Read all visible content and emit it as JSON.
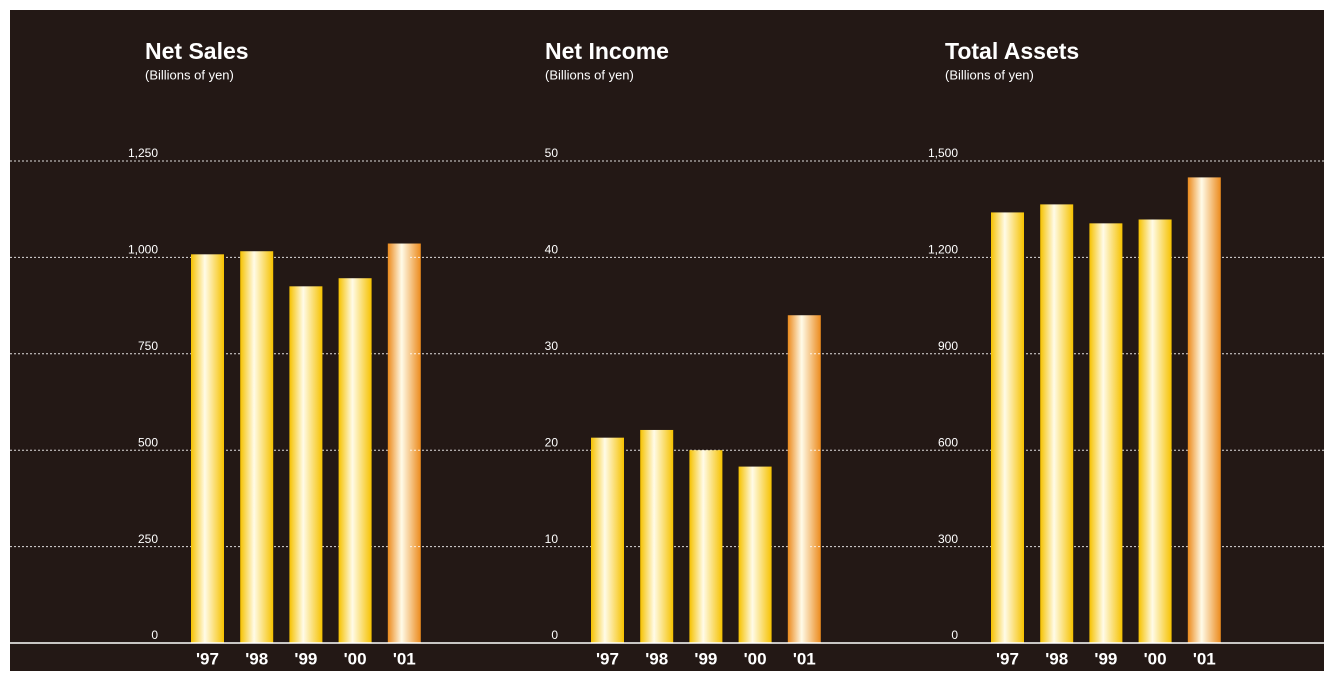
{
  "chart_data": [
    {
      "type": "bar",
      "title": "Net Sales",
      "subtitle": "(Billions of yen)",
      "categories": [
        "'97",
        "'98",
        "'99",
        "'00",
        "'01"
      ],
      "values": [
        1008,
        1016,
        925,
        946,
        1036
      ],
      "colors": [
        "#f6c200",
        "#f6c200",
        "#f6c200",
        "#f6c200",
        "#ec8a1c"
      ],
      "ylim": [
        0,
        1250
      ],
      "yticks": [
        0,
        250,
        500,
        750,
        {
          "value": 1000,
          "label": "1,000"
        },
        {
          "value": 1250,
          "label": "1,250"
        }
      ],
      "grid": true
    },
    {
      "type": "bar",
      "title": "Net Income",
      "subtitle": "(Billions of yen)",
      "categories": [
        "'97",
        "'98",
        "'99",
        "'00",
        "'01"
      ],
      "values": [
        21.3,
        22.1,
        20.0,
        18.3,
        34.0
      ],
      "colors": [
        "#f6c200",
        "#f6c200",
        "#f6c200",
        "#f6c200",
        "#ec8a1c"
      ],
      "ylim": [
        0,
        50
      ],
      "yticks": [
        0,
        10,
        20,
        30,
        40,
        50
      ],
      "grid": true
    },
    {
      "type": "bar",
      "title": "Total Assets",
      "subtitle": "(Billions of yen)",
      "categories": [
        "'97",
        "'98",
        "'99",
        "'00",
        "'01"
      ],
      "values": [
        1340,
        1365,
        1306,
        1318,
        1449
      ],
      "colors": [
        "#f6c200",
        "#f6c200",
        "#f6c200",
        "#f6c200",
        "#ec8a1c"
      ],
      "ylim": [
        0,
        1500
      ],
      "yticks": [
        0,
        300,
        600,
        900,
        {
          "value": 1200,
          "label": "1,200"
        },
        {
          "value": 1500,
          "label": "1,500"
        }
      ],
      "grid": true
    }
  ]
}
